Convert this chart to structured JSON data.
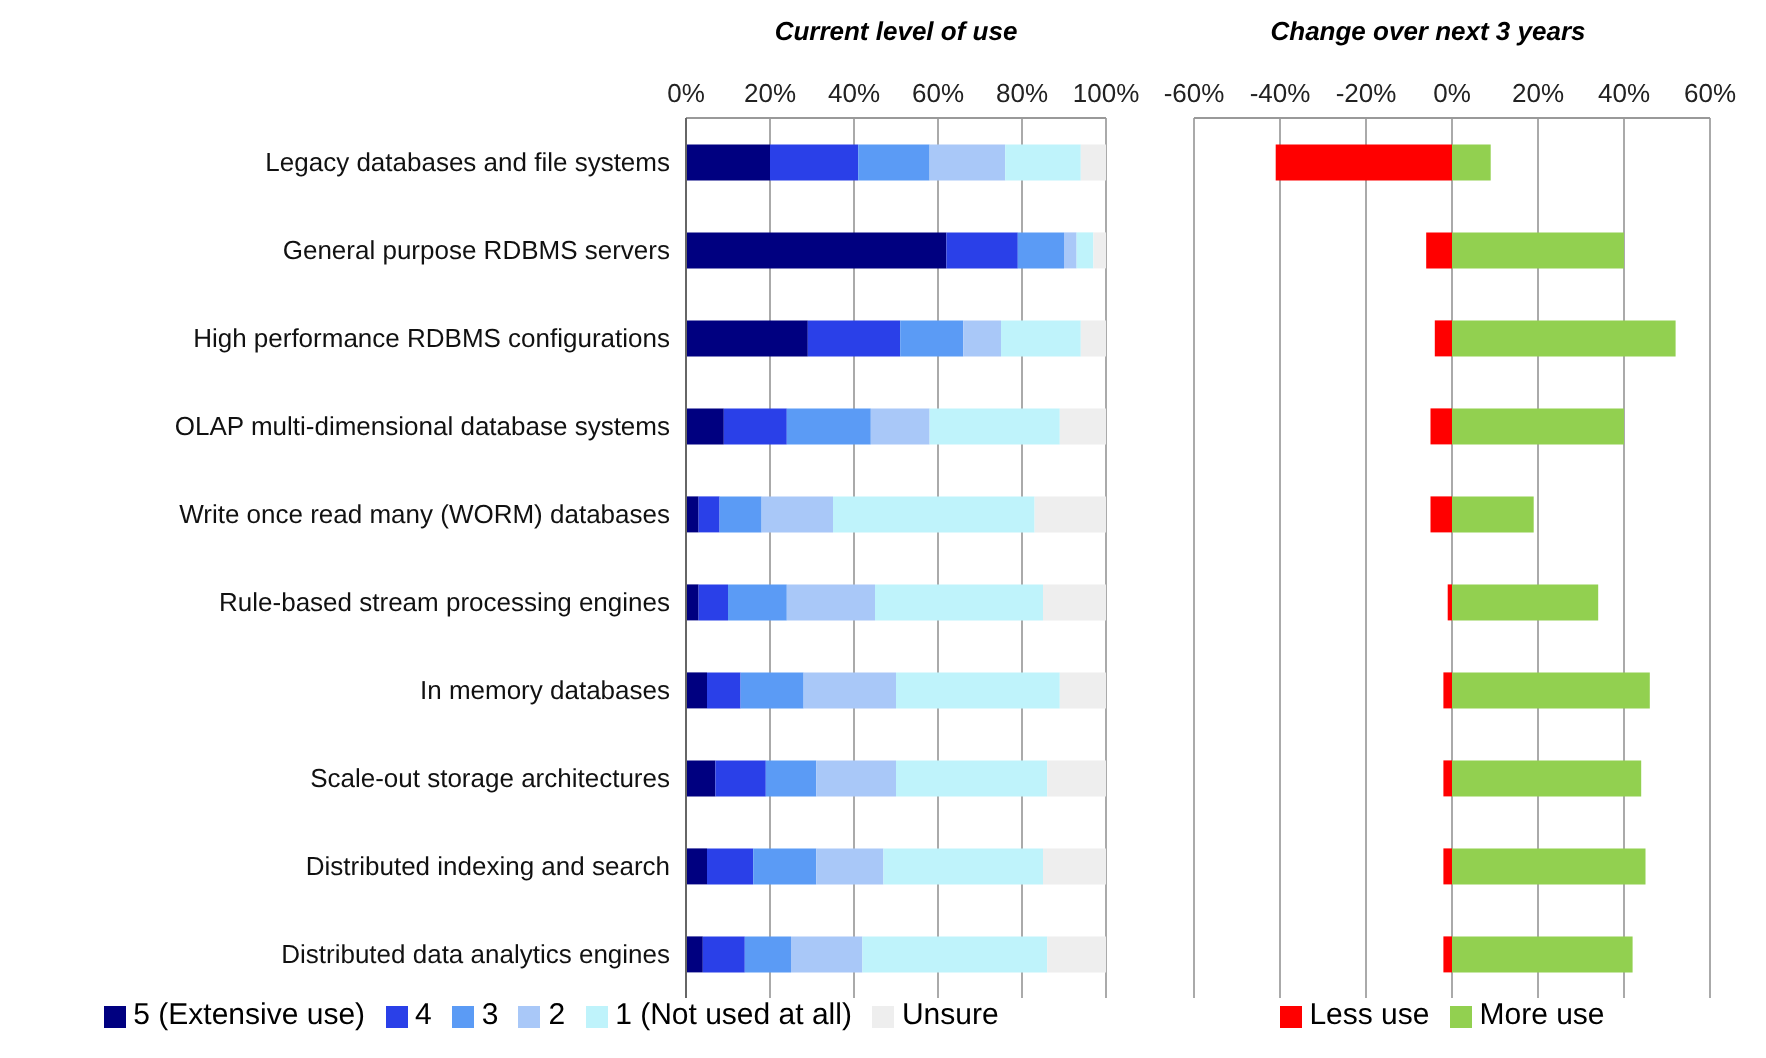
{
  "chart_data": [
    {
      "type": "bar",
      "title": "Current level of use",
      "orientation": "horizontal",
      "stacked": true,
      "grid": "x",
      "legend": "bottom",
      "categories": [
        "Legacy databases and file systems",
        "General purpose RDBMS servers",
        "High performance RDBMS configurations",
        "OLAP multi-dimensional database systems",
        "Write once read many (WORM) databases",
        "Rule-based stream processing engines",
        "In memory databases",
        "Scale-out storage architectures",
        "Distributed indexing and search",
        "Distributed data analytics engines"
      ],
      "xlim": [
        0,
        100
      ],
      "xticks": [
        {
          "value": 0,
          "label": "0%"
        },
        {
          "value": 20,
          "label": "20%"
        },
        {
          "value": 40,
          "label": "40%"
        },
        {
          "value": 60,
          "label": "60%"
        },
        {
          "value": 80,
          "label": "80%"
        },
        {
          "value": 100,
          "label": "100%"
        }
      ],
      "series": [
        {
          "name": "5 (Extensive use)",
          "color": "#000080",
          "values": [
            20,
            62,
            29,
            9,
            3,
            3,
            5,
            7,
            5,
            4
          ]
        },
        {
          "name": "4",
          "color": "#2a40e8",
          "values": [
            21,
            17,
            22,
            15,
            5,
            7,
            8,
            12,
            11,
            10
          ]
        },
        {
          "name": "3",
          "color": "#5b9bf5",
          "values": [
            17,
            11,
            15,
            20,
            10,
            14,
            15,
            12,
            15,
            11
          ]
        },
        {
          "name": "2",
          "color": "#a9c8f8",
          "values": [
            18,
            3,
            9,
            14,
            17,
            21,
            22,
            19,
            16,
            17
          ]
        },
        {
          "name": "1 (Not used at all)",
          "color": "#bff3fb",
          "values": [
            18,
            4,
            19,
            31,
            48,
            40,
            39,
            36,
            38,
            44
          ]
        },
        {
          "name": "Unsure",
          "color": "#eeeeee",
          "values": [
            6,
            3,
            6,
            11,
            17,
            15,
            11,
            14,
            15,
            14
          ]
        }
      ]
    },
    {
      "type": "bar",
      "title": "Change over next 3 years",
      "orientation": "horizontal",
      "stacked": true,
      "grid": "x",
      "legend": "bottom",
      "tick_labels": "x",
      "categories": [
        null,
        null,
        null,
        null,
        null,
        null,
        null,
        null,
        null,
        null
      ],
      "xlim": [
        -60,
        60
      ],
      "xticks": [
        {
          "value": -60,
          "label": "-60%"
        },
        {
          "value": -40,
          "label": "-40%"
        },
        {
          "value": -20,
          "label": "-20%"
        },
        {
          "value": 0,
          "label": "0%"
        },
        {
          "value": 20,
          "label": "20%"
        },
        {
          "value": 40,
          "label": "40%"
        },
        {
          "value": 60,
          "label": "60%"
        }
      ],
      "series": [
        {
          "name": "Less use",
          "color": "#ff0000",
          "values": [
            -41,
            -6,
            -4,
            -5,
            -5,
            -1,
            -2,
            -2,
            -2,
            -2
          ]
        },
        {
          "name": "More use",
          "color": "#92d050",
          "values": [
            9,
            40,
            52,
            40,
            19,
            34,
            46,
            44,
            45,
            42
          ]
        }
      ]
    }
  ]
}
